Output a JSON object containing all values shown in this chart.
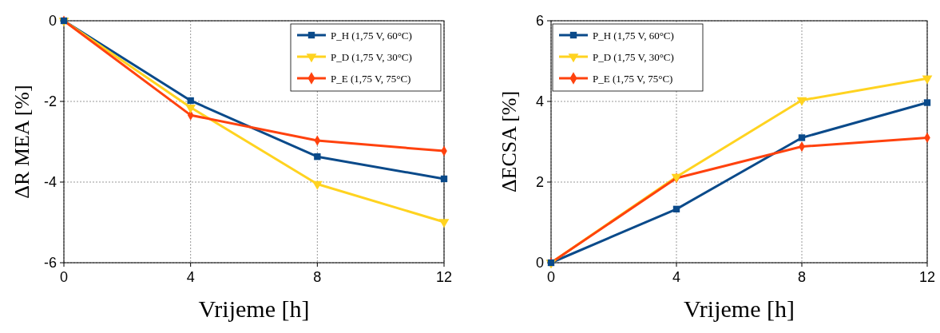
{
  "chart_data": [
    {
      "type": "line",
      "xlabel": "Vrijeme [h]",
      "ylabel": "ΔR MEA [%]",
      "x": [
        0,
        4,
        8,
        12
      ],
      "xlim": [
        0,
        12
      ],
      "xticks": [
        0,
        4,
        8,
        12
      ],
      "ylim": [
        -6,
        0
      ],
      "yticks": [
        -6,
        -4,
        -2,
        0
      ],
      "grid": true,
      "legend": "top right",
      "series": [
        {
          "name": "P_H (1,75 V, 60°C)",
          "color": "#0a4a8a",
          "marker": "square",
          "values": [
            0,
            -1.98,
            -3.37,
            -3.92
          ]
        },
        {
          "name": "P_D (1,75 V, 30°C)",
          "color": "#ffd320",
          "marker": "triangle",
          "values": [
            0,
            -2.15,
            -4.05,
            -4.99
          ]
        },
        {
          "name": "P_E (1,75 V, 75°C)",
          "color": "#ff420e",
          "marker": "diamond",
          "values": [
            0,
            -2.34,
            -2.97,
            -3.23
          ]
        }
      ]
    },
    {
      "type": "line",
      "xlabel": "Vrijeme [h]",
      "ylabel": "ΔECSA [%]",
      "x": [
        0,
        4,
        8,
        12
      ],
      "xlim": [
        0,
        12
      ],
      "xticks": [
        0,
        4,
        8,
        12
      ],
      "ylim": [
        0,
        6
      ],
      "yticks": [
        0,
        2,
        4,
        6
      ],
      "grid": true,
      "legend": "top left",
      "series": [
        {
          "name": "P_H (1,75 V, 60°C)",
          "color": "#0a4a8a",
          "marker": "square",
          "values": [
            0,
            1.33,
            3.1,
            3.97
          ]
        },
        {
          "name": "P_D (1,75 V, 30°C)",
          "color": "#ffd320",
          "marker": "triangle",
          "values": [
            0,
            2.13,
            4.03,
            4.57
          ]
        },
        {
          "name": "P_E (1,75 V, 75°C)",
          "color": "#ff420e",
          "marker": "diamond",
          "values": [
            0,
            2.1,
            2.88,
            3.1
          ]
        }
      ]
    }
  ]
}
